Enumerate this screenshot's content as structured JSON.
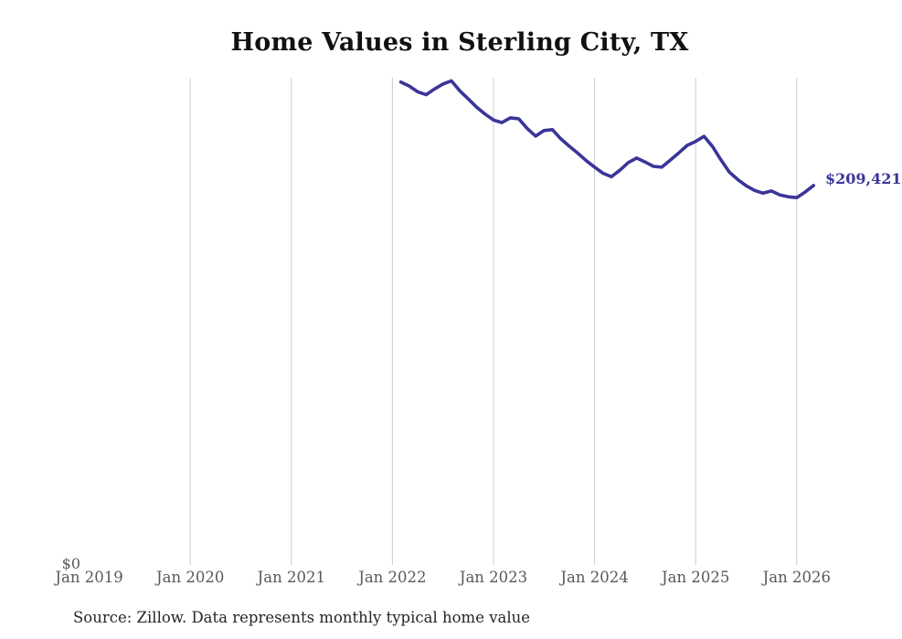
{
  "chart": {
    "title": "Home Values in Sterling City, TX",
    "zero_label": "$0",
    "end_value_label": "$209,421",
    "source_note": "Source: Zillow. Data represents monthly typical home value"
  },
  "colors": {
    "line": "#3b3598",
    "grid": "#cccccc",
    "axis_text": "#595959",
    "title_text": "#111111",
    "source_text": "#262626",
    "background": "#ffffff"
  },
  "chart_data": {
    "type": "line",
    "title": "Home Values in Sterling City, TX",
    "xlabel": "",
    "ylabel": "",
    "unit": "USD",
    "grid": "vertical-only",
    "legend": "none",
    "ylim": [
      0,
      269000
    ],
    "x_tick_labels": [
      "Jan 2019",
      "Jan 2020",
      "Jan 2021",
      "Jan 2022",
      "Jan 2023",
      "Jan 2024",
      "Jan 2025",
      "Jan 2026"
    ],
    "y_tick_labels": [
      "$0"
    ],
    "annotation_latest_value": 209421,
    "series": [
      {
        "name": "Monthly typical home value",
        "x": [
          "2022-02",
          "2022-03",
          "2022-04",
          "2022-05",
          "2022-06",
          "2022-07",
          "2022-08",
          "2022-09",
          "2022-10",
          "2022-11",
          "2022-12",
          "2023-01",
          "2023-02",
          "2023-03",
          "2023-04",
          "2023-05",
          "2023-06",
          "2023-07",
          "2023-08",
          "2023-09",
          "2023-10",
          "2023-11",
          "2023-12",
          "2024-01",
          "2024-02",
          "2024-03",
          "2024-04",
          "2024-05",
          "2024-06",
          "2024-07",
          "2024-08",
          "2024-09",
          "2024-10",
          "2024-11",
          "2024-12",
          "2025-01",
          "2025-02",
          "2025-03",
          "2025-04",
          "2025-05",
          "2025-06",
          "2025-07",
          "2025-08",
          "2025-09",
          "2025-10",
          "2025-11",
          "2025-12",
          "2026-01",
          "2026-02",
          "2026-03"
        ],
        "values": [
          266600,
          264400,
          261200,
          259600,
          262800,
          265500,
          267300,
          261800,
          257300,
          252700,
          248900,
          245600,
          244200,
          246800,
          246300,
          240900,
          236700,
          239800,
          240300,
          235200,
          231100,
          227300,
          223200,
          219600,
          216200,
          214300,
          217900,
          222100,
          224600,
          222400,
          220000,
          219600,
          223500,
          227500,
          231600,
          233800,
          236600,
          231000,
          223600,
          216800,
          212700,
          209300,
          206700,
          205200,
          206400,
          204200,
          203200,
          202700,
          205800,
          209421
        ]
      }
    ]
  }
}
